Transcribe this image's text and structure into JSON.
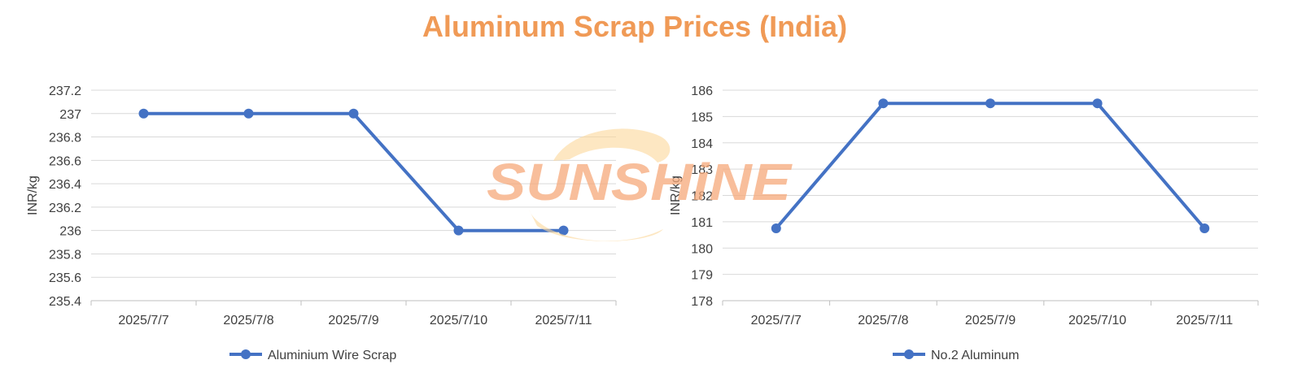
{
  "title": "Aluminum Scrap Prices (India)",
  "watermark": {
    "text": "SUNSHiNE",
    "colors": {
      "text": "#f6a97a",
      "arc": "#fbd79a"
    }
  },
  "colors": {
    "title": "#f09a56",
    "series": "#4472c4",
    "grid": "#d9d9d9",
    "text": "#404040"
  },
  "chart_data": [
    {
      "type": "line",
      "ylabel": "INR/kg",
      "categories": [
        "2025/7/7",
        "2025/7/8",
        "2025/7/9",
        "2025/7/10",
        "2025/7/11"
      ],
      "series": [
        {
          "name": "Aluminium Wire Scrap",
          "values": [
            237,
            237,
            237,
            236,
            236
          ],
          "color": "#4472c4"
        }
      ],
      "ylim": [
        235.4,
        237.2
      ],
      "yticks": [
        "235.4",
        "235.6",
        "235.8",
        "236",
        "236.2",
        "236.4",
        "236.6",
        "236.8",
        "237",
        "237.2"
      ],
      "grid": true,
      "legend": "bottom"
    },
    {
      "type": "line",
      "ylabel": "INR/kg",
      "categories": [
        "2025/7/7",
        "2025/7/8",
        "2025/7/9",
        "2025/7/10",
        "2025/7/11"
      ],
      "series": [
        {
          "name": "No.2 Aluminum",
          "values": [
            180.75,
            185.5,
            185.5,
            185.5,
            180.75
          ],
          "color": "#4472c4"
        }
      ],
      "ylim": [
        178,
        186
      ],
      "yticks": [
        "178",
        "179",
        "180",
        "181",
        "182",
        "183",
        "184",
        "185",
        "186"
      ],
      "grid": true,
      "legend": "bottom"
    }
  ]
}
